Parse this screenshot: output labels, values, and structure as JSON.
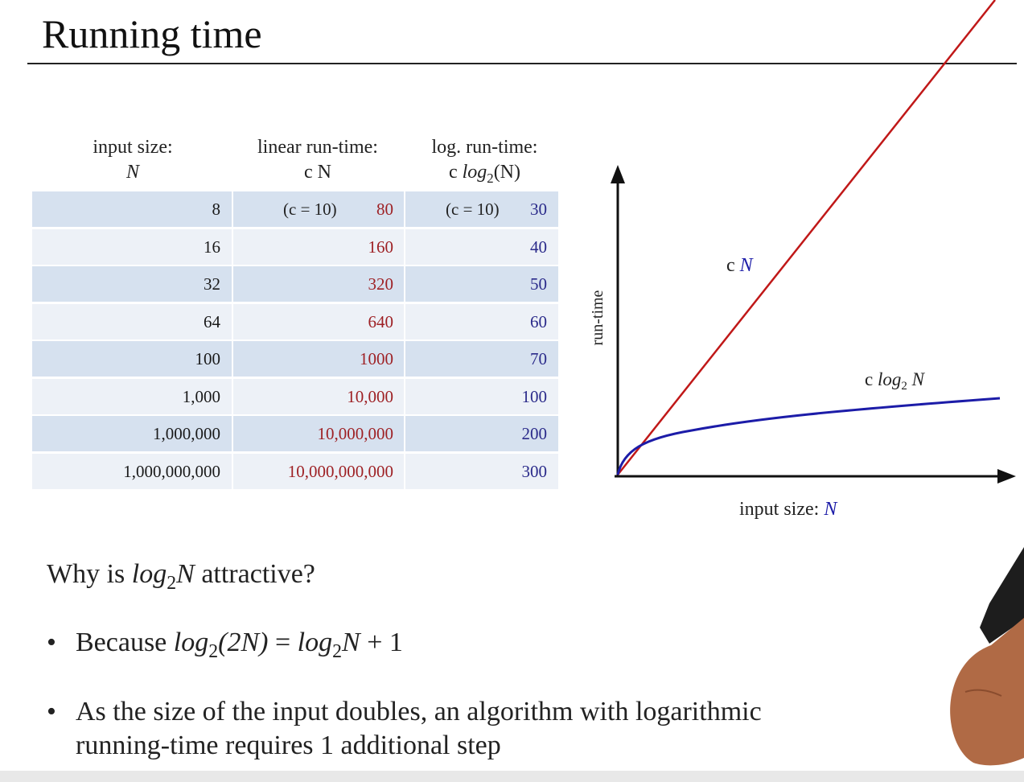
{
  "slide": {
    "title": "Running time"
  },
  "table": {
    "headers": {
      "col1": {
        "line1": "input size:",
        "line2": "N"
      },
      "col2": {
        "line1": "linear run-time:",
        "line2": "c N"
      },
      "col3": {
        "line1": "log. run-time:",
        "line2_prefix": "c ",
        "line2_log": "log",
        "line2_sub": "2",
        "line2_suffix": "(N)"
      }
    },
    "c_note_linear": "(c = 10)",
    "c_note_log": "(c = 10)",
    "rows": [
      {
        "n": "8",
        "linear": "80",
        "log": "30"
      },
      {
        "n": "16",
        "linear": "160",
        "log": "40"
      },
      {
        "n": "32",
        "linear": "320",
        "log": "50"
      },
      {
        "n": "64",
        "linear": "640",
        "log": "60"
      },
      {
        "n": "100",
        "linear": "1000",
        "log": "70"
      },
      {
        "n": "1,000",
        "linear": "10,000",
        "log": "100"
      },
      {
        "n": "1,000,000",
        "linear": "10,000,000",
        "log": "200"
      },
      {
        "n": "1,000,000,000",
        "linear": "10,000,000,000",
        "log": "300"
      }
    ]
  },
  "graph": {
    "y_label": "run-time",
    "x_label_text": "input size: ",
    "x_label_var": "N",
    "linear_label_c": "c ",
    "linear_label_var": "N",
    "log_label_c": "c ",
    "log_label_log": "log",
    "log_label_sub": "2",
    "log_label_var": " N",
    "colors": {
      "linear": "#c01818",
      "log": "#1c1ca8",
      "axis": "#111111"
    }
  },
  "text": {
    "question_pre": "Why is ",
    "question_log": "log",
    "question_sub": "2",
    "question_var": "N",
    "question_post": " attractive?",
    "bullet1_pre": "Because ",
    "bullet1_log1": "log",
    "bullet1_sub1": "2",
    "bullet1_arg": "(2N)",
    "bullet1_eq": " = ",
    "bullet1_log2": "log",
    "bullet1_sub2": "2",
    "bullet1_var": "N",
    "bullet1_post": " + 1",
    "bullet2_line1": "As the size of the input doubles, an algorithm with logarithmic",
    "bullet2_line2": "running-time requires 1 additional step",
    "bullet_symbol": "•"
  }
}
